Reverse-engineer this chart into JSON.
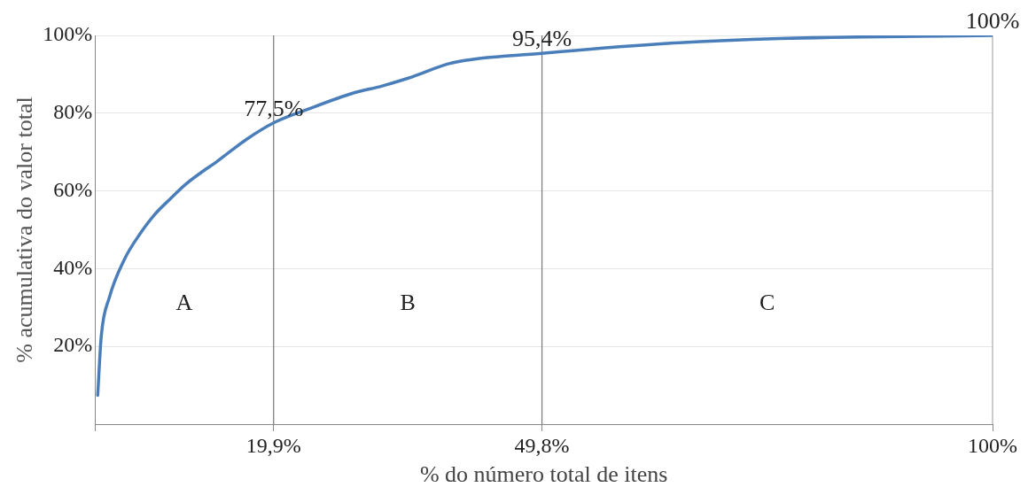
{
  "chart_data": {
    "type": "line",
    "xlabel": "% do número total de itens",
    "ylabel": "% acumulativa do valor total",
    "x": [
      0.3,
      0.7,
      1.6,
      3.3,
      5.0,
      6.6,
      8.4,
      10.1,
      11.8,
      13.5,
      15.2,
      16.9,
      19.9,
      23.7,
      28.8,
      32.0,
      34.9,
      39.9,
      49.8,
      62.7,
      76.3,
      100
    ],
    "series": [
      {
        "color": "#4a7ebb",
        "values": [
          7.4,
          22.7,
          32.6,
          42.5,
          48.9,
          53.8,
          58,
          61.7,
          64.7,
          67.4,
          70.4,
          73.3,
          77.5,
          81,
          85.2,
          87,
          89,
          93,
          95.4,
          97.8,
          99.2,
          100
        ]
      }
    ],
    "xlim": [
      0,
      100
    ],
    "xticks": [
      {
        "value": 0,
        "label": null
      },
      {
        "value": 19.9,
        "label": "19,9%"
      },
      {
        "value": 49.8,
        "label": "49,8%"
      },
      {
        "value": 100,
        "label": "100%"
      }
    ],
    "ylim": [
      0,
      100
    ],
    "yticks": [
      {
        "value": 20,
        "label": "20%"
      },
      {
        "value": 40,
        "label": "40%"
      },
      {
        "value": 60,
        "label": "60%"
      },
      {
        "value": 80,
        "label": "80%"
      },
      {
        "value": 100,
        "label": "100%"
      }
    ],
    "grid": "y",
    "marker": "none",
    "line_style": "solid",
    "ref_lines": [
      {
        "axis": "x",
        "value": 19.9,
        "color": "#777777"
      },
      {
        "axis": "x",
        "value": 49.8,
        "color": "#777777"
      },
      {
        "axis": "x",
        "value": 100,
        "color": "#aaaaaa"
      }
    ],
    "annotations": [
      {
        "text": "77,5%",
        "x": 19.9,
        "y": 77.5
      },
      {
        "text": "95,4%",
        "x": 49.8,
        "y": 95.4
      },
      {
        "text": "100%",
        "x": 100,
        "y": 100
      },
      "A",
      "B",
      "C"
    ],
    "legend": false
  }
}
